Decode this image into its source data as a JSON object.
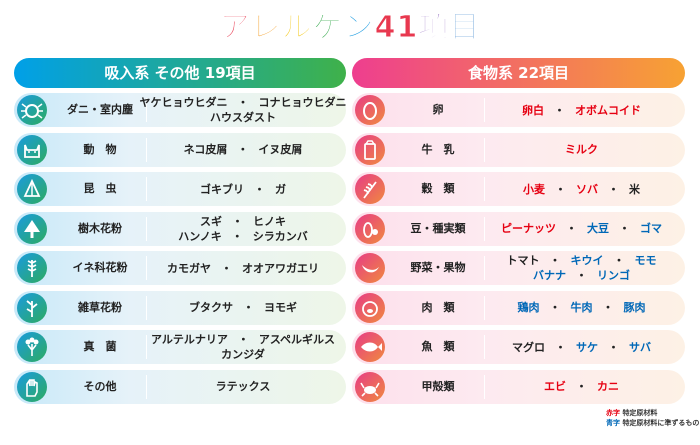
{
  "title": {
    "chars": [
      {
        "t": "ア",
        "c": "#e8384f"
      },
      {
        "t": "レ",
        "c": "#f39a1e"
      },
      {
        "t": "ル",
        "c": "#f2c300"
      },
      {
        "t": "ゲ",
        "c": "#33a84a"
      },
      {
        "t": "ン",
        "c": "#1a9be0"
      },
      {
        "t": "41",
        "c": "#e8384f"
      },
      {
        "t": "項",
        "c": "#7a4bb3"
      },
      {
        "t": "目",
        "c": "#1a6fc4"
      }
    ]
  },
  "left_header": "吸入系 その他 19項目",
  "right_header": "食物系 22項目",
  "left_rows": [
    {
      "icon": "mite-icon",
      "category": "ダニ・室内塵",
      "lines": [
        [
          {
            "t": "ヤケヒョウヒダニ",
            "c": "blk"
          },
          {
            "t": "コナヒョウヒダニ",
            "c": "blk"
          }
        ],
        [
          {
            "t": "ハウスダスト",
            "c": "blk"
          }
        ]
      ]
    },
    {
      "icon": "cat-icon",
      "category": "動　物",
      "lines": [
        [
          {
            "t": "ネコ皮屑",
            "c": "blk"
          },
          {
            "t": "イヌ皮屑",
            "c": "blk"
          }
        ]
      ]
    },
    {
      "icon": "insect-icon",
      "category": "昆　虫",
      "lines": [
        [
          {
            "t": "ゴキブリ",
            "c": "blk"
          },
          {
            "t": "ガ",
            "c": "blk"
          }
        ]
      ]
    },
    {
      "icon": "tree-icon",
      "category": "樹木花粉",
      "lines": [
        [
          {
            "t": "スギ",
            "c": "blk"
          },
          {
            "t": "ヒノキ",
            "c": "blk"
          }
        ],
        [
          {
            "t": "ハンノキ",
            "c": "blk"
          },
          {
            "t": "シラカンバ",
            "c": "blk"
          }
        ]
      ]
    },
    {
      "icon": "grass-icon",
      "category": "イネ科花粉",
      "lines": [
        [
          {
            "t": "カモガヤ",
            "c": "blk"
          },
          {
            "t": "オオアワガエリ",
            "c": "blk"
          }
        ]
      ]
    },
    {
      "icon": "weed-icon",
      "category": "雑草花粉",
      "lines": [
        [
          {
            "t": "ブタクサ",
            "c": "blk"
          },
          {
            "t": "ヨモギ",
            "c": "blk"
          }
        ]
      ]
    },
    {
      "icon": "fungus-icon",
      "category": "真　菌",
      "lines": [
        [
          {
            "t": "アルテルナリア",
            "c": "blk"
          },
          {
            "t": "アスペルギルス",
            "c": "blk"
          }
        ],
        [
          {
            "t": "カンジダ",
            "c": "blk"
          }
        ]
      ]
    },
    {
      "icon": "glove-icon",
      "category": "その他",
      "lines": [
        [
          {
            "t": "ラテックス",
            "c": "blk"
          }
        ]
      ]
    }
  ],
  "right_rows": [
    {
      "icon": "egg-icon",
      "category": "卵",
      "lines": [
        [
          {
            "t": "卵白",
            "c": "red"
          },
          {
            "t": "オボムコイド",
            "c": "red"
          }
        ]
      ]
    },
    {
      "icon": "milk-icon",
      "category": "牛　乳",
      "lines": [
        [
          {
            "t": "ミルク",
            "c": "red"
          }
        ]
      ]
    },
    {
      "icon": "wheat-icon",
      "category": "穀　類",
      "lines": [
        [
          {
            "t": "小麦",
            "c": "red"
          },
          {
            "t": "ソバ",
            "c": "red"
          },
          {
            "t": "米",
            "c": "blk"
          }
        ]
      ]
    },
    {
      "icon": "nut-icon",
      "category": "豆・種実類",
      "lines": [
        [
          {
            "t": "ピーナッツ",
            "c": "red"
          },
          {
            "t": "大豆",
            "c": "blue"
          },
          {
            "t": "ゴマ",
            "c": "blue"
          }
        ]
      ]
    },
    {
      "icon": "banana-icon",
      "category": "野菜・果物",
      "lines": [
        [
          {
            "t": "トマト",
            "c": "blk"
          },
          {
            "t": "キウイ",
            "c": "blue"
          },
          {
            "t": "モモ",
            "c": "blue"
          }
        ],
        [
          {
            "t": "バナナ",
            "c": "blue"
          },
          {
            "t": "リンゴ",
            "c": "blue"
          }
        ]
      ]
    },
    {
      "icon": "pig-icon",
      "category": "肉　類",
      "lines": [
        [
          {
            "t": "鶏肉",
            "c": "blue"
          },
          {
            "t": "牛肉",
            "c": "blue"
          },
          {
            "t": "豚肉",
            "c": "blue"
          }
        ]
      ]
    },
    {
      "icon": "fish-icon",
      "category": "魚　類",
      "lines": [
        [
          {
            "t": "マグロ",
            "c": "blk"
          },
          {
            "t": "サケ",
            "c": "blue"
          },
          {
            "t": "サバ",
            "c": "blue"
          }
        ]
      ]
    },
    {
      "icon": "crab-icon",
      "category": "甲殻類",
      "lines": [
        [
          {
            "t": "エビ",
            "c": "red"
          },
          {
            "t": "カニ",
            "c": "red"
          }
        ]
      ]
    }
  ],
  "legend": {
    "red_key": "赤字",
    "red_text": "特定原材料",
    "blue_key": "青字",
    "blue_text": "特定原材料に準ずるもの"
  },
  "separator": "・"
}
